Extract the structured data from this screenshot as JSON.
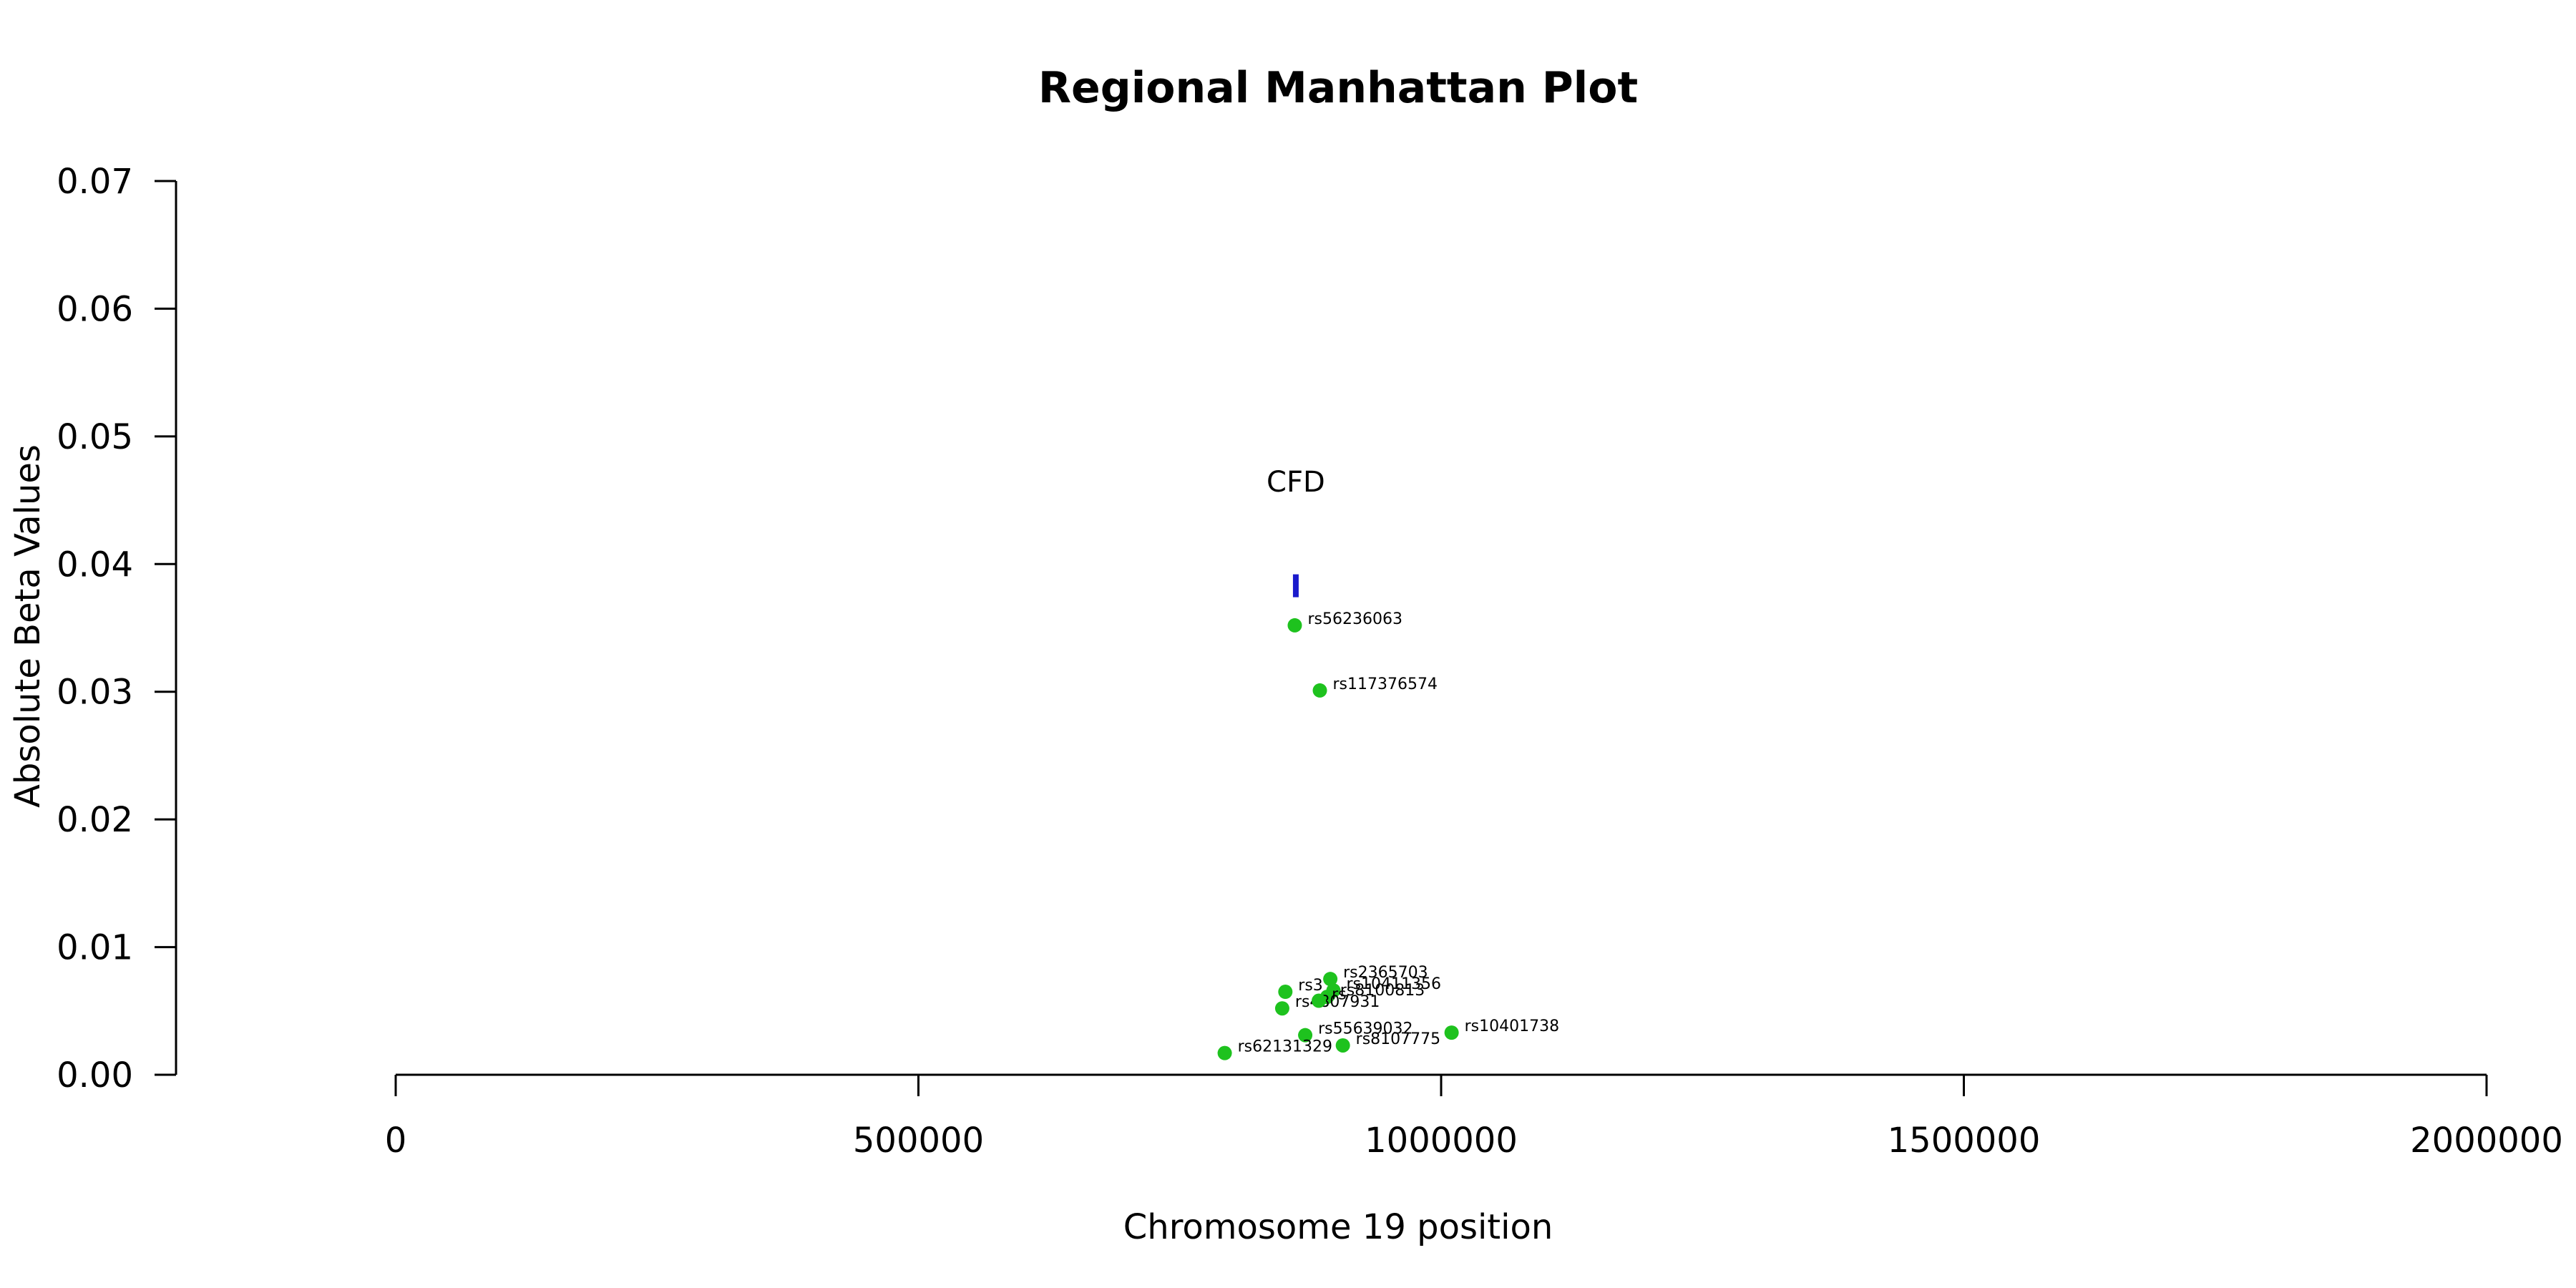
{
  "chart_data": {
    "type": "scatter",
    "title": "Regional Manhattan Plot",
    "xlabel": "Chromosome 19 position",
    "ylabel": "Absolute Beta Values",
    "xlim": [
      0,
      2000000
    ],
    "ylim": [
      0,
      0.07
    ],
    "x_ticks": [
      0,
      500000,
      1000000,
      1500000,
      2000000
    ],
    "x_tick_labels": [
      "0",
      "500000",
      "1000000",
      "1500000",
      "2000000"
    ],
    "y_ticks": [
      0,
      0.01,
      0.02,
      0.03,
      0.04,
      0.05,
      0.06,
      0.07
    ],
    "y_tick_labels": [
      "0.00",
      "0.01",
      "0.02",
      "0.03",
      "0.04",
      "0.05",
      "0.06",
      "0.07"
    ],
    "grid": false,
    "colors": {
      "snp": "#1ec21e",
      "gene": "#1a1acc"
    },
    "gene": {
      "name": "CFD",
      "start": 859000,
      "end": 863000,
      "y": 0.0383
    },
    "points": [
      {
        "label": "rs56236063",
        "x": 860000,
        "y": 0.0352
      },
      {
        "label": "rs117376574",
        "x": 884000,
        "y": 0.0301
      },
      {
        "label": "rs2365703",
        "x": 894000,
        "y": 0.0075
      },
      {
        "label": "rs10411356",
        "x": 897000,
        "y": 0.0066
      },
      {
        "label": "rs3",
        "x": 851000,
        "y": 0.0065
      },
      {
        "label": "rs8100813",
        "x": 891000,
        "y": 0.0061
      },
      {
        "label": "rs4807931",
        "x": 848000,
        "y": 0.0052
      },
      {
        "label": "rs",
        "x": 883000,
        "y": 0.0058
      },
      {
        "label": "rs10401738",
        "x": 1010000,
        "y": 0.0033
      },
      {
        "label": "rs55639032",
        "x": 870000,
        "y": 0.0031
      },
      {
        "label": "rs8107775",
        "x": 906000,
        "y": 0.0023
      },
      {
        "label": "rs62131329",
        "x": 793000,
        "y": 0.0017
      }
    ]
  }
}
